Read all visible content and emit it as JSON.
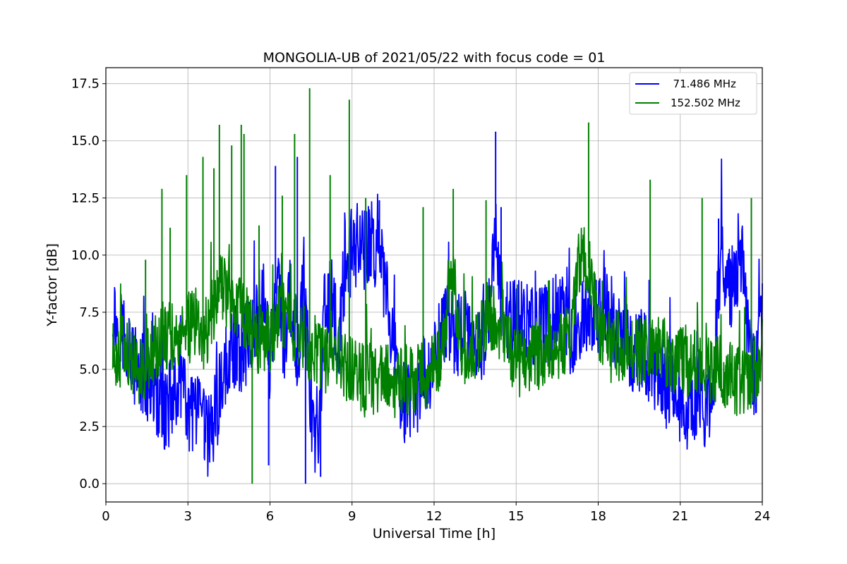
{
  "chart_data": {
    "type": "line",
    "title": "MONGOLIA-UB of 2021/05/22 with focus code = 01",
    "xlabel": "Universal Time [h]",
    "ylabel": "Y-factor [dB]",
    "xlim": [
      0,
      24
    ],
    "ylim": [
      -0.8,
      18.2
    ],
    "xticks": [
      0,
      3,
      6,
      9,
      12,
      15,
      18,
      21,
      24
    ],
    "yticks": [
      0.0,
      2.5,
      5.0,
      7.5,
      10.0,
      12.5,
      15.0,
      17.5
    ],
    "xtick_labels": [
      "0",
      "3",
      "6",
      "9",
      "12",
      "15",
      "18",
      "21",
      "24"
    ],
    "ytick_labels": [
      "0.0",
      "2.5",
      "5.0",
      "7.5",
      "10.0",
      "12.5",
      "15.0",
      "17.5"
    ],
    "grid": true,
    "legend_position": "top-right",
    "series": [
      {
        "name": "  71.486 MHz",
        "color": "#0000ff",
        "x": [
          0.25,
          0.5,
          0.75,
          1.0,
          1.25,
          1.5,
          1.75,
          2.0,
          2.25,
          2.5,
          2.75,
          3.0,
          3.25,
          3.5,
          3.75,
          4.0,
          4.25,
          4.5,
          4.75,
          5.0,
          5.25,
          5.5,
          5.75,
          6.0,
          6.25,
          6.5,
          6.75,
          7.0,
          7.25,
          7.5,
          7.75,
          8.0,
          8.25,
          8.5,
          8.75,
          9.0,
          9.25,
          9.5,
          9.75,
          10.0,
          10.25,
          10.5,
          10.75,
          11.0,
          11.25,
          11.5,
          11.75,
          12.0,
          12.25,
          12.5,
          12.75,
          13.0,
          13.25,
          13.5,
          13.75,
          14.0,
          14.25,
          14.5,
          14.75,
          15.0,
          15.25,
          15.5,
          15.75,
          16.0,
          16.25,
          16.5,
          16.75,
          17.0,
          17.25,
          17.5,
          17.75,
          18.0,
          18.25,
          18.5,
          18.75,
          19.0,
          19.25,
          19.5,
          19.75,
          20.0,
          20.25,
          20.5,
          20.75,
          21.0,
          21.25,
          21.5,
          21.75,
          22.0,
          22.25,
          22.5,
          22.75,
          23.0,
          23.25,
          23.5,
          23.75,
          24.0
        ],
        "y": [
          7.4,
          6.8,
          6.5,
          5.0,
          4.8,
          4.6,
          3.8,
          3.6,
          3.2,
          4.2,
          4.5,
          2.8,
          3.1,
          2.6,
          2.1,
          2.9,
          4.6,
          5.5,
          6.1,
          5.8,
          6.6,
          7.5,
          8.3,
          5.2,
          9.1,
          6.2,
          7.8,
          5.5,
          9.2,
          3.1,
          0.9,
          7.6,
          8.2,
          5.9,
          9.6,
          10.2,
          10.5,
          10.1,
          10.6,
          10.3,
          8.1,
          6.0,
          4.3,
          3.4,
          3.7,
          4.1,
          4.6,
          5.2,
          6.4,
          7.3,
          6.5,
          6.6,
          6.2,
          5.8,
          6.4,
          7.1,
          10.8,
          7.4,
          7.3,
          7.2,
          7.1,
          7.0,
          6.8,
          6.9,
          7.2,
          7.5,
          7.3,
          6.5,
          6.8,
          7.1,
          7.4,
          7.3,
          7.6,
          7.2,
          6.4,
          6.1,
          5.8,
          5.9,
          5.6,
          5.2,
          4.6,
          4.2,
          4.6,
          3.5,
          3.1,
          3.6,
          4.1,
          3.0,
          5.1,
          10.6,
          8.4,
          9.1,
          9.7,
          6.2,
          4.5,
          7.6
        ]
      },
      {
        "name": "152.502 MHz",
        "color": "#008000",
        "x": [
          0.25,
          0.5,
          0.75,
          1.0,
          1.25,
          1.5,
          1.75,
          2.0,
          2.25,
          2.5,
          2.75,
          3.0,
          3.25,
          3.5,
          3.75,
          4.0,
          4.25,
          4.5,
          4.75,
          5.0,
          5.25,
          5.5,
          5.75,
          6.0,
          6.25,
          6.5,
          6.75,
          7.0,
          7.25,
          7.5,
          7.75,
          8.0,
          8.25,
          8.5,
          8.75,
          9.0,
          9.25,
          9.5,
          9.75,
          10.0,
          10.25,
          10.5,
          10.75,
          11.0,
          11.25,
          11.5,
          11.75,
          12.0,
          12.25,
          12.5,
          12.75,
          13.0,
          13.25,
          13.5,
          13.75,
          14.0,
          14.25,
          14.5,
          14.75,
          15.0,
          15.25,
          15.5,
          15.75,
          16.0,
          16.25,
          16.5,
          16.75,
          17.0,
          17.25,
          17.5,
          17.75,
          18.0,
          18.25,
          18.5,
          18.75,
          19.0,
          19.25,
          19.5,
          19.75,
          20.0,
          20.25,
          20.5,
          20.75,
          21.0,
          21.25,
          21.5,
          21.75,
          22.0,
          22.25,
          22.5,
          22.75,
          23.0,
          23.25,
          23.5,
          23.75,
          24.0
        ],
        "y": [
          5.6,
          5.8,
          5.9,
          5.2,
          5.0,
          5.4,
          5.8,
          6.2,
          6.6,
          6.4,
          6.2,
          6.8,
          7.1,
          6.5,
          6.9,
          8.0,
          8.6,
          8.3,
          8.1,
          7.6,
          6.8,
          6.5,
          6.1,
          6.4,
          7.2,
          7.6,
          7.1,
          6.8,
          6.4,
          5.9,
          5.7,
          5.4,
          6.1,
          5.8,
          5.3,
          4.8,
          4.6,
          4.5,
          4.6,
          4.7,
          4.6,
          4.4,
          4.5,
          4.5,
          4.4,
          4.6,
          4.8,
          5.2,
          5.8,
          8.2,
          8.6,
          6.2,
          5.6,
          5.9,
          6.5,
          7.6,
          6.9,
          7.1,
          5.8,
          5.5,
          5.2,
          5.4,
          5.6,
          5.9,
          6.1,
          5.8,
          6.2,
          6.6,
          9.6,
          9.8,
          9.2,
          6.2,
          6.1,
          5.9,
          6.0,
          5.8,
          5.9,
          5.7,
          5.8,
          5.9,
          6.1,
          5.7,
          5.4,
          5.6,
          5.3,
          5.5,
          5.1,
          5.2,
          5.0,
          4.9,
          4.7,
          4.6,
          4.5,
          4.4,
          5.1,
          5.8
        ]
      }
    ],
    "spikes": [
      {
        "series": 1,
        "x": 2.05,
        "y": 12.9
      },
      {
        "series": 1,
        "x": 1.45,
        "y": 9.8
      },
      {
        "series": 1,
        "x": 2.35,
        "y": 11.2
      },
      {
        "series": 1,
        "x": 2.95,
        "y": 13.5
      },
      {
        "series": 1,
        "x": 3.55,
        "y": 14.3
      },
      {
        "series": 1,
        "x": 3.95,
        "y": 13.8
      },
      {
        "series": 1,
        "x": 4.15,
        "y": 15.7
      },
      {
        "series": 1,
        "x": 4.6,
        "y": 14.8
      },
      {
        "series": 1,
        "x": 4.95,
        "y": 15.7
      },
      {
        "series": 1,
        "x": 5.05,
        "y": 15.3
      },
      {
        "series": 1,
        "x": 5.6,
        "y": 11.3
      },
      {
        "series": 1,
        "x": 6.45,
        "y": 12.6
      },
      {
        "series": 1,
        "x": 6.9,
        "y": 15.3
      },
      {
        "series": 1,
        "x": 7.45,
        "y": 17.3
      },
      {
        "series": 1,
        "x": 8.2,
        "y": 13.5
      },
      {
        "series": 1,
        "x": 8.9,
        "y": 16.8
      },
      {
        "series": 1,
        "x": 9.5,
        "y": 12.5
      },
      {
        "series": 1,
        "x": 11.6,
        "y": 12.1
      },
      {
        "series": 1,
        "x": 12.7,
        "y": 12.9
      },
      {
        "series": 1,
        "x": 13.9,
        "y": 12.4
      },
      {
        "series": 1,
        "x": 17.65,
        "y": 15.8
      },
      {
        "series": 1,
        "x": 19.9,
        "y": 13.3
      },
      {
        "series": 1,
        "x": 21.8,
        "y": 12.5
      },
      {
        "series": 1,
        "x": 23.6,
        "y": 12.5
      },
      {
        "series": 1,
        "x": 5.35,
        "y": 0.0
      },
      {
        "series": 0,
        "x": 6.2,
        "y": 13.9
      },
      {
        "series": 0,
        "x": 7.0,
        "y": 14.3
      },
      {
        "series": 0,
        "x": 10.0,
        "y": 12.4
      },
      {
        "series": 0,
        "x": 14.25,
        "y": 15.4
      },
      {
        "series": 0,
        "x": 14.45,
        "y": 12.1
      },
      {
        "series": 0,
        "x": 22.4,
        "y": 11.6
      },
      {
        "series": 0,
        "x": 7.3,
        "y": 0.0
      },
      {
        "series": 0,
        "x": 7.85,
        "y": 0.3
      },
      {
        "series": 0,
        "x": 5.95,
        "y": 0.8
      },
      {
        "series": 0,
        "x": 3.6,
        "y": 1.1
      }
    ]
  }
}
